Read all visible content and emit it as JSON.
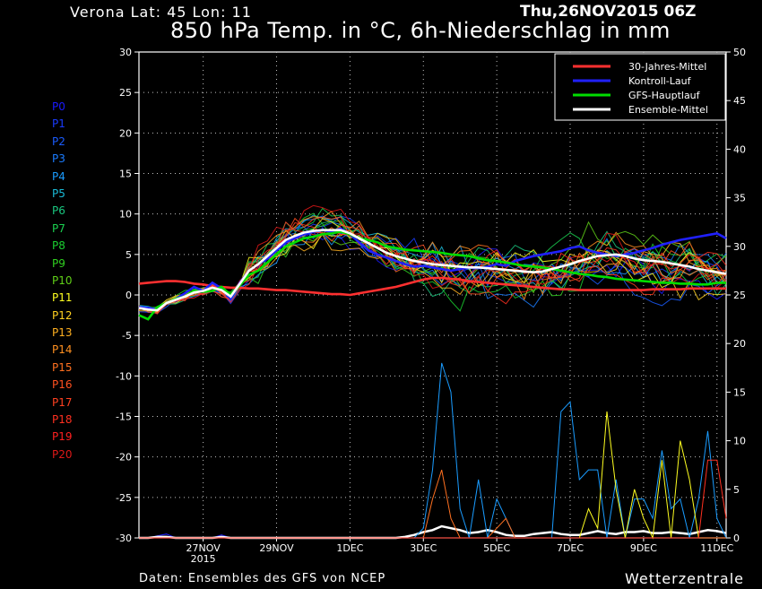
{
  "header": {
    "location": "Verona   Lat: 45 Lon: 11",
    "datestamp": "Thu,26NOV2015 06Z",
    "title": "850 hPa Temp. in °C, 6h-Niederschlag in mm"
  },
  "footer": {
    "source": "Daten: Ensembles des GFS von NCEP",
    "brand": "Wetterzentrale"
  },
  "colors": {
    "background": "#000000",
    "mittel30": "#ff3030",
    "kontroll": "#2020ff",
    "gfs": "#00dd00",
    "ensemble_mean": "#ffffff",
    "grid": "#c0c0c0",
    "members": [
      "#1a1aff",
      "#1a3cff",
      "#1a5cff",
      "#1a7cff",
      "#1a9cff",
      "#1abcd8",
      "#1ac880",
      "#1ad050",
      "#1ad030",
      "#30d020",
      "#60d018",
      "#ffff20",
      "#ffd020",
      "#ffb020",
      "#ff9020",
      "#ff7020",
      "#ff5020",
      "#ff4020",
      "#ff3020",
      "#ff2020",
      "#e01818"
    ]
  },
  "members": [
    "P0",
    "P1",
    "P2",
    "P3",
    "P4",
    "P5",
    "P6",
    "P7",
    "P8",
    "P9",
    "P10",
    "P11",
    "P12",
    "P13",
    "P14",
    "P15",
    "P16",
    "P17",
    "P18",
    "P19",
    "P20"
  ],
  "chart_data": {
    "type": "line",
    "title": "850 hPa Temp. in °C, 6h-Niederschlag in mm",
    "x_tick_labels": [
      "27NOV",
      "29NOV",
      "1DEC",
      "3DEC",
      "5DEC",
      "7DEC",
      "9DEC",
      "11DEC"
    ],
    "x_tick_sublabel": "2015",
    "x_range": [
      "2015-11-26 06Z",
      "2015-12-12 06Z"
    ],
    "y_left": {
      "label": "",
      "ticks": [
        30,
        25,
        20,
        15,
        10,
        5,
        0,
        -5,
        -10,
        -15,
        -20,
        -25,
        -30
      ],
      "range": [
        -30,
        30
      ]
    },
    "y_right": {
      "label": "",
      "ticks": [
        50,
        45,
        40,
        35,
        30,
        25,
        20,
        15,
        10,
        5,
        0
      ],
      "range": [
        0,
        50
      ]
    },
    "grid": true,
    "legend": {
      "placement": "top-right",
      "entries": [
        "30-Jahres-Mittel",
        "Kontroll-Lauf",
        "GFS-Hauptlauf",
        "Ensemble-Mittel"
      ]
    },
    "day_step": 1,
    "temperature_series": [
      {
        "name": "30-Jahres-Mittel",
        "axis": "left",
        "values": [
          1.4,
          1.5,
          1.6,
          1.7,
          1.7,
          1.6,
          1.4,
          1.3,
          1.1,
          1.0,
          0.9,
          0.9,
          0.8,
          0.8,
          0.7,
          0.6,
          0.6,
          0.5,
          0.4,
          0.3,
          0.2,
          0.1,
          0.1,
          0.0,
          0.2,
          0.4,
          0.6,
          0.8,
          1.0,
          1.3,
          1.6,
          1.9,
          2.1,
          2.1,
          2.0,
          1.9,
          1.7,
          1.6,
          1.5,
          1.4,
          1.3,
          1.2,
          1.1,
          1.0,
          0.9,
          0.8,
          0.7,
          0.7,
          0.6,
          0.6,
          0.6,
          0.6,
          0.6,
          0.6,
          0.6,
          0.6,
          0.7,
          0.7,
          0.7,
          0.7,
          0.8,
          0.8,
          0.8,
          0.8,
          0.8
        ]
      },
      {
        "name": "Kontroll-Lauf",
        "axis": "left",
        "values": [
          -1.5,
          -1.6,
          -1.8,
          -1.0,
          -0.5,
          0.2,
          1.0,
          0.5,
          1.5,
          0.8,
          -0.5,
          1.5,
          3.0,
          3.8,
          4.5,
          5.5,
          6.5,
          7.0,
          7.5,
          7.8,
          8.0,
          7.8,
          8.2,
          7.5,
          6.5,
          5.5,
          5.0,
          4.6,
          4.2,
          3.8,
          3.5,
          3.6,
          3.4,
          3.2,
          3.0,
          3.2,
          3.4,
          3.3,
          3.5,
          3.8,
          3.6,
          4.2,
          4.5,
          4.8,
          5.0,
          5.2,
          5.4,
          5.8,
          6.0,
          5.5,
          5.2,
          5.0,
          4.8,
          5.0,
          5.2,
          5.5,
          5.8,
          6.2,
          6.5,
          6.8,
          7.0,
          7.2,
          7.4,
          7.6,
          7.0
        ]
      },
      {
        "name": "GFS-Hauptlauf",
        "axis": "left",
        "values": [
          -2.5,
          -3.0,
          -1.5,
          -1.0,
          -0.5,
          -0.2,
          0.5,
          0.4,
          0.5,
          1.0,
          0.0,
          1.2,
          2.5,
          3.0,
          4.0,
          5.0,
          6.0,
          6.5,
          7.0,
          7.2,
          7.5,
          7.6,
          7.8,
          7.5,
          7.0,
          6.8,
          6.5,
          6.0,
          5.8,
          5.6,
          5.5,
          5.4,
          5.3,
          5.2,
          5.0,
          4.9,
          4.8,
          4.5,
          4.3,
          4.2,
          4.0,
          3.8,
          3.6,
          3.5,
          3.4,
          3.2,
          3.0,
          2.8,
          2.6,
          2.5,
          2.3,
          2.2,
          2.0,
          1.9,
          1.8,
          1.7,
          1.6,
          1.5,
          1.5,
          1.4,
          1.4,
          1.3,
          1.3,
          1.5,
          1.5
        ]
      },
      {
        "name": "Ensemble-Mittel",
        "axis": "left",
        "values": [
          -1.6,
          -1.8,
          -1.9,
          -1.0,
          -0.6,
          -0.2,
          0.3,
          0.5,
          0.9,
          0.6,
          -0.2,
          1.4,
          3.0,
          3.8,
          4.8,
          5.8,
          6.8,
          7.3,
          7.7,
          7.9,
          8.0,
          8.0,
          8.0,
          7.6,
          7.0,
          6.4,
          5.8,
          5.2,
          4.8,
          4.5,
          4.2,
          4.0,
          3.8,
          3.7,
          3.6,
          3.5,
          3.4,
          3.4,
          3.3,
          3.2,
          3.1,
          3.0,
          2.9,
          2.8,
          2.9,
          3.2,
          3.5,
          3.8,
          4.2,
          4.5,
          4.8,
          4.9,
          5.0,
          4.8,
          4.5,
          4.3,
          4.2,
          4.1,
          3.9,
          3.7,
          3.5,
          3.2,
          3.0,
          2.8,
          2.6
        ]
      }
    ],
    "precipitation_series": [
      {
        "name": "Kontroll-Lauf",
        "axis": "right",
        "values": [
          0.0,
          0.0,
          0.2,
          0.4,
          0.0,
          0.0,
          0.0,
          0.0,
          0.0,
          0.3,
          0.0,
          0.0,
          0.0,
          0.0,
          0.0,
          0.0,
          0.0,
          0.0,
          0.0,
          0.0,
          0.0,
          0.0,
          0.0,
          0.0,
          0.0,
          0.0,
          0.0,
          0.0,
          0.0,
          0.0,
          0.0,
          0.0,
          0.0,
          0.0,
          0.0,
          0.0,
          0.0,
          0.0,
          0.0,
          0.0,
          0.0,
          0.0,
          0.0,
          0.0,
          0.0,
          0.0,
          0.0,
          0.0,
          0.0,
          0.0,
          0.0,
          0.0,
          0.0,
          0.0,
          0.0,
          0.0,
          0.0,
          0.0,
          0.0,
          0.0,
          0.0,
          0.0,
          0.0,
          0.0,
          0.0
        ]
      },
      {
        "name": "Ensemble-Mittel",
        "axis": "right",
        "values": [
          0.0,
          0.0,
          0.1,
          0.1,
          0.0,
          0.0,
          0.0,
          0.0,
          0.0,
          0.1,
          0.0,
          0.0,
          0.0,
          0.0,
          0.0,
          0.0,
          0.0,
          0.0,
          0.0,
          0.0,
          0.0,
          0.0,
          0.0,
          0.0,
          0.0,
          0.0,
          0.0,
          0.0,
          0.0,
          0.1,
          0.3,
          0.6,
          0.8,
          1.2,
          1.0,
          0.8,
          0.5,
          0.6,
          0.8,
          0.6,
          0.3,
          0.2,
          0.2,
          0.4,
          0.5,
          0.6,
          0.4,
          0.3,
          0.3,
          0.5,
          0.7,
          0.5,
          0.4,
          0.6,
          0.6,
          0.7,
          0.5,
          0.5,
          0.6,
          0.5,
          0.4,
          0.6,
          0.8,
          0.7,
          0.5
        ]
      },
      {
        "name": "P4",
        "axis": "right",
        "values": [
          0,
          0,
          0,
          0,
          0,
          0,
          0,
          0,
          0,
          0,
          0,
          0,
          0,
          0,
          0,
          0,
          0,
          0,
          0,
          0,
          0,
          0,
          0,
          0,
          0,
          0,
          0,
          0,
          0,
          0,
          0,
          1,
          7,
          18,
          15,
          3,
          0,
          6,
          0,
          4,
          2,
          0,
          0,
          0,
          0,
          0,
          13,
          14,
          6,
          7,
          7,
          0,
          6,
          0,
          4,
          4,
          2,
          9,
          3,
          4,
          0,
          4,
          11,
          2,
          0
        ]
      },
      {
        "name": "P11",
        "axis": "right",
        "values": [
          0,
          0,
          0,
          0,
          0,
          0,
          0,
          0,
          0,
          0,
          0,
          0,
          0,
          0,
          0,
          0,
          0,
          0,
          0,
          0,
          0,
          0,
          0,
          0,
          0,
          0,
          0,
          0,
          0,
          0,
          0,
          0,
          0,
          0,
          0,
          0,
          0,
          0,
          0,
          0,
          0,
          0,
          0,
          0,
          0,
          0,
          0,
          0,
          0,
          3,
          1,
          13,
          5,
          0,
          5,
          2,
          0,
          8,
          0,
          10,
          6,
          0,
          0,
          0,
          0
        ]
      },
      {
        "name": "P15",
        "axis": "right",
        "values": [
          0,
          0,
          0,
          0,
          0,
          0,
          0,
          0,
          0,
          0,
          0,
          0,
          0,
          0,
          0,
          0,
          0,
          0,
          0,
          0,
          0,
          0,
          0,
          0,
          0,
          0,
          0,
          0,
          0,
          0,
          0,
          0,
          4,
          7,
          2,
          0,
          0,
          0,
          0,
          1,
          2,
          0,
          0,
          0,
          0,
          0,
          0,
          0,
          0,
          0,
          0,
          0,
          0,
          0,
          0,
          0,
          0,
          0,
          0,
          0,
          0,
          0,
          0,
          0,
          0
        ]
      },
      {
        "name": "P18",
        "axis": "right",
        "values": [
          0,
          0,
          0,
          0,
          0,
          0,
          0,
          0,
          0,
          0,
          0,
          0,
          0,
          0,
          0,
          0,
          0,
          0,
          0,
          0,
          0,
          0,
          0,
          0,
          0,
          0,
          0,
          0,
          0,
          0,
          0,
          0,
          0,
          0,
          0,
          0,
          0,
          0,
          0,
          0,
          0,
          0,
          0,
          0,
          0,
          0,
          0,
          0,
          0,
          0,
          0,
          0,
          0,
          0,
          0,
          0,
          0,
          0,
          0,
          0,
          0,
          0,
          8,
          8,
          2
        ]
      }
    ]
  }
}
